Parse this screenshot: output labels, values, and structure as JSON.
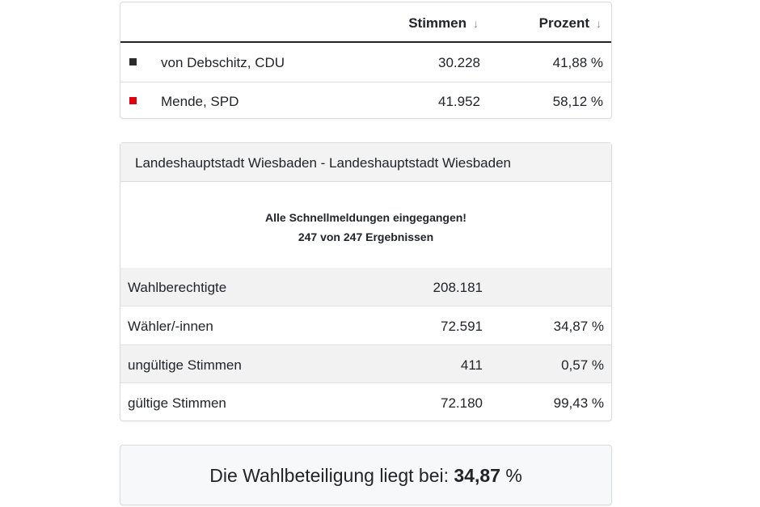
{
  "results": {
    "headers": {
      "votes": "Stimmen",
      "percent": "Prozent",
      "sort_glyph": "↓"
    },
    "rows": [
      {
        "name": "von Debschitz, CDU",
        "votes": "30.228",
        "percent": "41,88 %",
        "color": "#2b2b2b"
      },
      {
        "name": "Mende, SPD",
        "votes": "41.952",
        "percent": "58,12 %",
        "color": "#e3000f"
      }
    ]
  },
  "summary": {
    "title": "Landeshauptstadt Wiesbaden - Landeshauptstadt Wiesbaden",
    "notice_line1": "Alle Schnellmeldungen eingegangen!",
    "notice_line2": "247 von 247 Ergebnissen",
    "rows": [
      {
        "label": "Wahlberechtigte",
        "value": "208.181",
        "percent": ""
      },
      {
        "label": "Wähler/-innen",
        "value": "72.591",
        "percent": "34,87 %"
      },
      {
        "label": "ungültige Stimmen",
        "value": "411",
        "percent": "0,57 %"
      },
      {
        "label": "gültige Stimmen",
        "value": "72.180",
        "percent": "99,43 %"
      }
    ]
  },
  "turnout": {
    "prefix": "Die Wahlbeteiligung liegt bei: ",
    "value": "34,87",
    "suffix": " %"
  }
}
